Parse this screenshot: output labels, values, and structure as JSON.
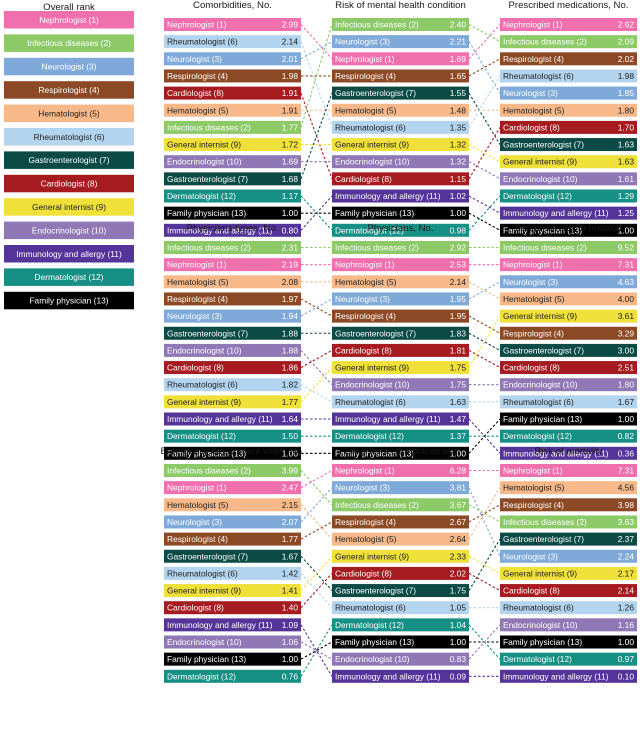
{
  "colors": {
    "Nephrologist": "#f06fad",
    "Infectious diseases": "#8cc967",
    "Neurologist": "#7ea9d8",
    "Respirologist": "#8b4a25",
    "Hematologist": "#f7b98a",
    "Rheumatologist": "#b3d4ee",
    "Gastroenterologist": "#0b4a45",
    "Cardiologist": "#a51b1f",
    "General internist": "#f0e03a",
    "Endocrinologist": "#9077b5",
    "Immunology and allergy": "#55349a",
    "Dermatologist": "#168f85",
    "Family physician": "#000000"
  },
  "text_dark": [
    "Rheumatologist",
    "Hematologist",
    "General internist"
  ],
  "overall_rank": {
    "title": "Overall rank",
    "items": [
      {
        "name": "Nephrologist",
        "rank": 1,
        "label": "Nephrologist (1)"
      },
      {
        "name": "Infectious diseases",
        "rank": 2,
        "label": "Infectious diseases (2)"
      },
      {
        "name": "Neurologist",
        "rank": 3,
        "label": "Neurologist (3)"
      },
      {
        "name": "Respirologist",
        "rank": 4,
        "label": "Respirologist (4)"
      },
      {
        "name": "Hematologist",
        "rank": 5,
        "label": "Hematologist (5)"
      },
      {
        "name": "Rheumatologist",
        "rank": 6,
        "label": "Rheumatologist (6)"
      },
      {
        "name": "Gastroenterologist",
        "rank": 7,
        "label": "Gastroenterologist (7)"
      },
      {
        "name": "Cardiologist",
        "rank": 8,
        "label": "Cardiologist (8)"
      },
      {
        "name": "General internist",
        "rank": 9,
        "label": "General internist (9)"
      },
      {
        "name": "Endocrinologist",
        "rank": 10,
        "label": "Endocrinologist (10)"
      },
      {
        "name": "Immunology and allergy",
        "rank": 11,
        "label": "Immunology and allergy (11)"
      },
      {
        "name": "Dermatologist",
        "rank": 12,
        "label": "Dermatologist (12)"
      },
      {
        "name": "Family physician",
        "rank": 13,
        "label": "Family physician (13)"
      }
    ]
  },
  "chart_data": [
    {
      "type": "table",
      "title": "Comorbidities, No.",
      "rows": [
        {
          "label": "Nephrologist (1)",
          "name": "Nephrologist",
          "value": "2.99"
        },
        {
          "label": "Rheumatologist (6)",
          "name": "Rheumatologist",
          "value": "2.14"
        },
        {
          "label": "Neurologist (3)",
          "name": "Neurologist",
          "value": "2.01"
        },
        {
          "label": "Respirologist (4)",
          "name": "Respirologist",
          "value": "1.98"
        },
        {
          "label": "Cardiologist (8)",
          "name": "Cardiologist",
          "value": "1.91"
        },
        {
          "label": "Hematologist (5)",
          "name": "Hematologist",
          "value": "1.91"
        },
        {
          "label": "Infectious diseases (2)",
          "name": "Infectious diseases",
          "value": "1.77"
        },
        {
          "label": "General internist (9)",
          "name": "General internist",
          "value": "1.72"
        },
        {
          "label": "Endocrinologist (10)",
          "name": "Endocrinologist",
          "value": "1.69"
        },
        {
          "label": "Gastroenterologist (7)",
          "name": "Gastroenterologist",
          "value": "1.68"
        },
        {
          "label": "Dermatologist (12)",
          "name": "Dermatologist",
          "value": "1.17"
        },
        {
          "label": "Family physician (13)",
          "name": "Family physician",
          "value": "1.00"
        },
        {
          "label": "Immunology and allergy (11)",
          "name": "Immunology and allergy",
          "value": "0.80"
        }
      ]
    },
    {
      "type": "table",
      "title": "Risk of mental health condition",
      "rows": [
        {
          "label": "Infectious diseases (2)",
          "name": "Infectious diseases",
          "value": "2.40"
        },
        {
          "label": "Neurologist (3)",
          "name": "Neurologist",
          "value": "2.21"
        },
        {
          "label": "Nephrologist (1)",
          "name": "Nephrologist",
          "value": "1.69"
        },
        {
          "label": "Respirologist (4)",
          "name": "Respirologist",
          "value": "1.65"
        },
        {
          "label": "Gastroenterologist (7)",
          "name": "Gastroenterologist",
          "value": "1.55"
        },
        {
          "label": "Hematologist (5)",
          "name": "Hematologist",
          "value": "1.48"
        },
        {
          "label": "Rheumatologist (6)",
          "name": "Rheumatologist",
          "value": "1.35"
        },
        {
          "label": "General internist (9)",
          "name": "General internist",
          "value": "1.32"
        },
        {
          "label": "Endocrinologist (10)",
          "name": "Endocrinologist",
          "value": "1.32"
        },
        {
          "label": "Cardiologist (8)",
          "name": "Cardiologist",
          "value": "1.15"
        },
        {
          "label": "Immunology and allergy (11)",
          "name": "Immunology and allergy",
          "value": "1.02"
        },
        {
          "label": "Family physician (13)",
          "name": "Family physician",
          "value": "1.00"
        },
        {
          "label": "Dermatologist (12)",
          "name": "Dermatologist",
          "value": "0.98"
        }
      ]
    },
    {
      "type": "table",
      "title": "Prescribed medications, No.",
      "rows": [
        {
          "label": "Nephrologist (1)",
          "name": "Nephrologist",
          "value": "2.62"
        },
        {
          "label": "Infectious diseases (2)",
          "name": "Infectious diseases",
          "value": "2.09"
        },
        {
          "label": "Respirologist (4)",
          "name": "Respirologist",
          "value": "2.02"
        },
        {
          "label": "Rheumatologist (6)",
          "name": "Rheumatologist",
          "value": "1.98"
        },
        {
          "label": "Neurologist (3)",
          "name": "Neurologist",
          "value": "1.85"
        },
        {
          "label": "Hematologist (5)",
          "name": "Hematologist",
          "value": "1.80"
        },
        {
          "label": "Cardiologist (8)",
          "name": "Cardiologist",
          "value": "1.70"
        },
        {
          "label": "Gastroenterologist (7)",
          "name": "Gastroenterologist",
          "value": "1.63"
        },
        {
          "label": "General internist (9)",
          "name": "General internist",
          "value": "1.63"
        },
        {
          "label": "Endocrinologist (10)",
          "name": "Endocrinologist",
          "value": "1.61"
        },
        {
          "label": "Dermatologist (12)",
          "name": "Dermatologist",
          "value": "1.29"
        },
        {
          "label": "Immunology and allergy (11)",
          "name": "Immunology and allergy",
          "value": "1.25"
        },
        {
          "label": "Family physician (13)",
          "name": "Family physician",
          "value": "1.00"
        }
      ]
    },
    {
      "type": "table",
      "title": "Physicians types, No.",
      "rows": [
        {
          "label": "Infectious diseases (2)",
          "name": "Infectious diseases",
          "value": "2.31"
        },
        {
          "label": "Nephrologist (1)",
          "name": "Nephrologist",
          "value": "2.19"
        },
        {
          "label": "Hematologist (5)",
          "name": "Hematologist",
          "value": "2.08"
        },
        {
          "label": "Respirologist (4)",
          "name": "Respirologist",
          "value": "1.97"
        },
        {
          "label": "Neurologist (3)",
          "name": "Neurologist",
          "value": "1.94"
        },
        {
          "label": "Gastroenterologist (7)",
          "name": "Gastroenterologist",
          "value": "1.88"
        },
        {
          "label": "Endocrinologist (10)",
          "name": "Endocrinologist",
          "value": "1.88"
        },
        {
          "label": "Cardiologist (8)",
          "name": "Cardiologist",
          "value": "1.86"
        },
        {
          "label": "Rheumatologist (6)",
          "name": "Rheumatologist",
          "value": "1.82"
        },
        {
          "label": "General internist (9)",
          "name": "General internist",
          "value": "1.77"
        },
        {
          "label": "Immunology and allergy (11)",
          "name": "Immunology and allergy",
          "value": "1.64"
        },
        {
          "label": "Dermatologist (12)",
          "name": "Dermatologist",
          "value": "1.50"
        },
        {
          "label": "Family physician (13)",
          "name": "Family physician",
          "value": "1.00"
        }
      ]
    },
    {
      "type": "table",
      "title": "Physicians, No.",
      "rows": [
        {
          "label": "Infectious diseases (2)",
          "name": "Infectious diseases",
          "value": "2.92"
        },
        {
          "label": "Nephrologist (1)",
          "name": "Nephrologist",
          "value": "2.53"
        },
        {
          "label": "Hematologist (5)",
          "name": "Hematologist",
          "value": "2.14"
        },
        {
          "label": "Neurologist (3)",
          "name": "Neurologist",
          "value": "1.95"
        },
        {
          "label": "Respirologist (4)",
          "name": "Respirologist",
          "value": "1.95"
        },
        {
          "label": "Gastroenterologist (7)",
          "name": "Gastroenterologist",
          "value": "1.83"
        },
        {
          "label": "Cardiologist (8)",
          "name": "Cardiologist",
          "value": "1.81"
        },
        {
          "label": "General internist (9)",
          "name": "General internist",
          "value": "1.75"
        },
        {
          "label": "Endocrinologist (10)",
          "name": "Endocrinologist",
          "value": "1.75"
        },
        {
          "label": "Rheumatologist (6)",
          "name": "Rheumatologist",
          "value": "1.63"
        },
        {
          "label": "Immunology and allergy (11)",
          "name": "Immunology and allergy",
          "value": "1.47"
        },
        {
          "label": "Dermatologist (12)",
          "name": "Dermatologist",
          "value": "1.37"
        },
        {
          "label": "Family physician (13)",
          "name": "Family physician",
          "value": "1.00"
        }
      ]
    },
    {
      "type": "table",
      "title": "Length of stay in hospital",
      "rows": [
        {
          "label": "Infectious diseases (2)",
          "name": "Infectious diseases",
          "value": "9.52"
        },
        {
          "label": "Nephrologist (1)",
          "name": "Nephrologist",
          "value": "7.31"
        },
        {
          "label": "Neurologist (3)",
          "name": "Neurologist",
          "value": "4.63"
        },
        {
          "label": "Hematologist (5)",
          "name": "Hematologist",
          "value": "4.00"
        },
        {
          "label": "General internist (9)",
          "name": "General internist",
          "value": "3.61"
        },
        {
          "label": "Respirologist (4)",
          "name": "Respirologist",
          "value": "3.29"
        },
        {
          "label": "Gastroenterologist (7)",
          "name": "Gastroenterologist",
          "value": "3.00"
        },
        {
          "label": "Cardiologist (8)",
          "name": "Cardiologist",
          "value": "2.51"
        },
        {
          "label": "Endocrinologist (10)",
          "name": "Endocrinologist",
          "value": "1.80"
        },
        {
          "label": "Rheumatologist (6)",
          "name": "Rheumatologist",
          "value": "1.67"
        },
        {
          "label": "Family physician (13)",
          "name": "Family physician",
          "value": "1.00"
        },
        {
          "label": "Dermatologist (12)",
          "name": "Dermatologist",
          "value": "0.82"
        },
        {
          "label": "Immunology and allergy (11)",
          "name": "Immunology and allergy",
          "value": "0.36"
        }
      ]
    },
    {
      "type": "table",
      "title": "Emergency department visits, No.",
      "rows": [
        {
          "label": "Infectious diseases (2)",
          "name": "Infectious diseases",
          "value": "3.99"
        },
        {
          "label": "Nephrologist (1)",
          "name": "Nephrologist",
          "value": "2.47"
        },
        {
          "label": "Hematologist (5)",
          "name": "Hematologist",
          "value": "2.15"
        },
        {
          "label": "Neurologist (3)",
          "name": "Neurologist",
          "value": "2.07"
        },
        {
          "label": "Respirologist (4)",
          "name": "Respirologist",
          "value": "1.77"
        },
        {
          "label": "Gastroenterologist (7)",
          "name": "Gastroenterologist",
          "value": "1.67"
        },
        {
          "label": "Rheumatologist (6)",
          "name": "Rheumatologist",
          "value": "1.42"
        },
        {
          "label": "General internist (9)",
          "name": "General internist",
          "value": "1.41"
        },
        {
          "label": "Cardiologist (8)",
          "name": "Cardiologist",
          "value": "1.40"
        },
        {
          "label": "Immunology and allergy (11)",
          "name": "Immunology and allergy",
          "value": "1.09"
        },
        {
          "label": "Endocrinologist (10)",
          "name": "Endocrinologist",
          "value": "1.06"
        },
        {
          "label": "Family physician (13)",
          "name": "Family physician",
          "value": "1.00"
        },
        {
          "label": "Dermatologist (12)",
          "name": "Dermatologist",
          "value": "0.76"
        }
      ]
    },
    {
      "type": "table",
      "title": "Long-term care placement",
      "rows": [
        {
          "label": "Nephrologist (1)",
          "name": "Nephrologist",
          "value": "6.28"
        },
        {
          "label": "Neurologist (3)",
          "name": "Neurologist",
          "value": "3.81"
        },
        {
          "label": "Infectious diseases (2)",
          "name": "Infectious diseases",
          "value": "3.67"
        },
        {
          "label": "Respirologist (4)",
          "name": "Respirologist",
          "value": "2.67"
        },
        {
          "label": "Hematologist (5)",
          "name": "Hematologist",
          "value": "2.64"
        },
        {
          "label": "General internist (9)",
          "name": "General internist",
          "value": "2.33"
        },
        {
          "label": "Cardiologist (8)",
          "name": "Cardiologist",
          "value": "2.02"
        },
        {
          "label": "Gastroenterologist (7)",
          "name": "Gastroenterologist",
          "value": "1.75"
        },
        {
          "label": "Rheumatologist (6)",
          "name": "Rheumatologist",
          "value": "1.05"
        },
        {
          "label": "Dermatologist (12)",
          "name": "Dermatologist",
          "value": "1.04"
        },
        {
          "label": "Family physician (13)",
          "name": "Family physician",
          "value": "1.00"
        },
        {
          "label": "Endocrinologist (10)",
          "name": "Endocrinologist",
          "value": "0.83"
        },
        {
          "label": "Immunology and allergy (11)",
          "name": "Immunology and allergy",
          "value": "0.09"
        }
      ]
    },
    {
      "type": "table",
      "title": "Risk of mortality",
      "rows": [
        {
          "label": "Nephrologist (1)",
          "name": "Nephrologist",
          "value": "7.31"
        },
        {
          "label": "Hematologist (5)",
          "name": "Hematologist",
          "value": "4.56"
        },
        {
          "label": "Respirologist (4)",
          "name": "Respirologist",
          "value": "3.98"
        },
        {
          "label": "Infectious diseases (2)",
          "name": "Infectious diseases",
          "value": "3.63"
        },
        {
          "label": "Gastroenterologist (7)",
          "name": "Gastroenterologist",
          "value": "2.37"
        },
        {
          "label": "Neurologist (3)",
          "name": "Neurologist",
          "value": "2.24"
        },
        {
          "label": "General internist (9)",
          "name": "General internist",
          "value": "2.17"
        },
        {
          "label": "Cardiologist (8)",
          "name": "Cardiologist",
          "value": "2.14"
        },
        {
          "label": "Rheumatologist (6)",
          "name": "Rheumatologist",
          "value": "1.26"
        },
        {
          "label": "Endocrinologist (10)",
          "name": "Endocrinologist",
          "value": "1.16"
        },
        {
          "label": "Family physician (13)",
          "name": "Family physician",
          "value": "1.00"
        },
        {
          "label": "Dermatologist (12)",
          "name": "Dermatologist",
          "value": "0.97"
        },
        {
          "label": "Immunology and allergy (11)",
          "name": "Immunology and allergy",
          "value": "0.10"
        }
      ]
    }
  ]
}
